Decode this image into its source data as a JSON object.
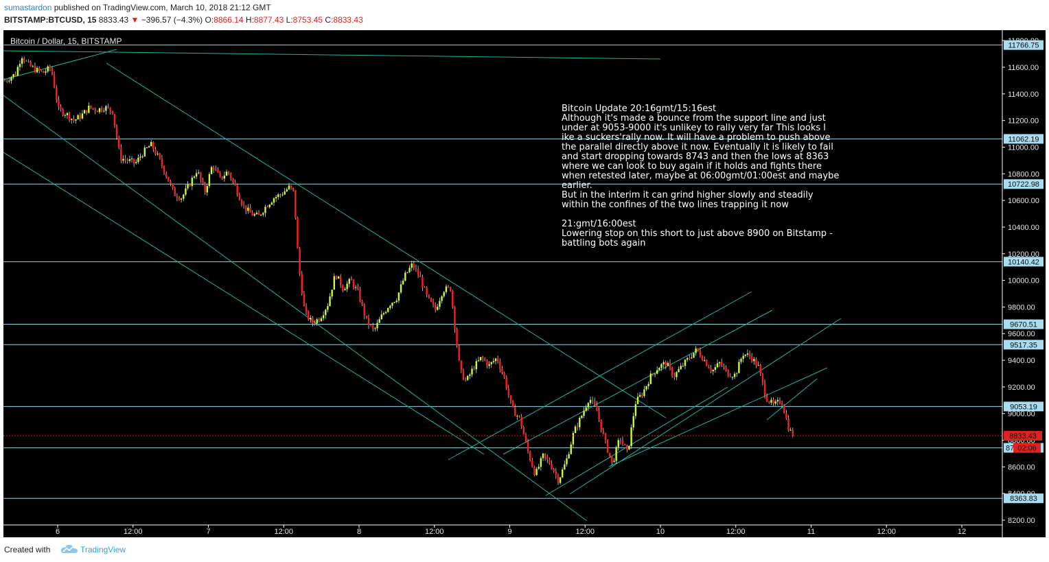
{
  "header": {
    "username": "sumastardon",
    "published_text": "published on TradingView.com, March 10, 2018 21:12 GMT",
    "symbol": "BITSTAMP:BTCUSD, 15",
    "last": "8833.43",
    "change": "−396.57 (−4.3%)",
    "open_label": "O:",
    "open": "8866.14",
    "high_label": "H:",
    "high": "8877.43",
    "low_label": "L:",
    "low": "8753.45",
    "close_label": "C:",
    "close": "8833.43"
  },
  "chart": {
    "title": "Bitcoin / Dollar, 15, BITSTAMP",
    "annotation_lines": [
      "Bitcoin Update 20:16gmt/15:16est",
      "Although it's made a bounce from the support line and just",
      "under at 9053-9000 it's unlikey to rally very far  This looks l",
      "ike a suckers'rally now. It will have a problem to push above",
      "the parallel directly above it now. Eventually it is likely to fail",
      "and start dropping towards 8743 and then the lows at 8363",
      "where we can look to buy again if it holds and fights there",
      "when retested later, maybe at 06:00gmt/01:00est and maybe",
      "earlier.",
      "But in the interim it can grind higher slowly and steadily",
      "within the confines of the two lines trapping it now",
      "",
      "21:gmt/16:00est",
      "Lowering stop on this short to just above 8900 on Bitstamp -",
      "battling bots again"
    ],
    "countdown": "02:06",
    "price_tag_partial": "87",
    "colors": {
      "background": "#000000",
      "up": "#c8ff2e",
      "down": "#ff1d1d",
      "lines": "#1fb5a2",
      "hline": "#8fd6e6",
      "last_price": "#e0221f"
    }
  },
  "footer": {
    "created_with": "Created with",
    "brand": "TradingView",
    "logo_icon": "tradingview-cloud-icon"
  },
  "chart_data": {
    "type": "candlestick",
    "title": "Bitcoin / Dollar, 15, BITSTAMP",
    "y_ticks": [
      8200,
      8400,
      8600,
      8800,
      9000,
      9200,
      9400,
      9600,
      9800,
      10000,
      10200,
      10400,
      10600,
      10800,
      11000,
      11200,
      11400,
      11600,
      11800
    ],
    "y_tick_labels": [
      "8200.00",
      "8400.00",
      "8600.00",
      "8800.00",
      "9000.00",
      "9200.00",
      "9400.00",
      "9600.00",
      "9800.00",
      "10000.00",
      "10200.00",
      "10400.00",
      "10600.00",
      "10800.00",
      "11000.00",
      "11200.00",
      "11400.00",
      "11600.00",
      "11800.00"
    ],
    "ylim": [
      8150,
      11850
    ],
    "x_tick_labels": [
      "6",
      "12:00",
      "7",
      "12:00",
      "8",
      "12:00",
      "9",
      "12:00",
      "10",
      "12:00",
      "11",
      "12:00",
      "12"
    ],
    "horizontal_levels": [
      11766.75,
      11062.19,
      10722.98,
      10140.42,
      9670.51,
      9517.35,
      9053.19,
      8743.0,
      8363.83
    ],
    "horizontal_level_labels": [
      "11766.75",
      "11062.19",
      "10722.98",
      "10140.42",
      "9670.51",
      "9517.35",
      "9053.19",
      "",
      "8363.83"
    ],
    "last_price": 8833.43,
    "last_price_label": "8833.43",
    "price_path": [
      [
        0.0,
        11500
      ],
      [
        0.7,
        11550
      ],
      [
        1.1,
        11690
      ],
      [
        1.5,
        11620
      ],
      [
        2.0,
        11580
      ],
      [
        2.5,
        11560
      ],
      [
        3.0,
        11600
      ],
      [
        3.5,
        11280
      ],
      [
        4.0,
        11250
      ],
      [
        4.5,
        11200
      ],
      [
        5.0,
        11240
      ],
      [
        5.5,
        11300
      ],
      [
        6.0,
        11280
      ],
      [
        6.5,
        11300
      ],
      [
        7.0,
        11270
      ],
      [
        7.5,
        10920
      ],
      [
        8.0,
        10900
      ],
      [
        8.5,
        10880
      ],
      [
        9.0,
        10960
      ],
      [
        9.5,
        11020
      ],
      [
        10.0,
        10920
      ],
      [
        10.5,
        10790
      ],
      [
        11.0,
        10650
      ],
      [
        11.5,
        10620
      ],
      [
        12.0,
        10720
      ],
      [
        12.5,
        10830
      ],
      [
        13.0,
        10660
      ],
      [
        13.5,
        10870
      ],
      [
        14.0,
        10760
      ],
      [
        14.5,
        10820
      ],
      [
        15.0,
        10700
      ],
      [
        15.5,
        10560
      ],
      [
        16.0,
        10500
      ],
      [
        16.5,
        10480
      ],
      [
        17.0,
        10560
      ],
      [
        17.5,
        10620
      ],
      [
        18.0,
        10650
      ],
      [
        18.5,
        10700
      ],
      [
        18.8,
        10660
      ],
      [
        19.1,
        10120
      ],
      [
        19.5,
        9760
      ],
      [
        20.0,
        9680
      ],
      [
        20.5,
        9720
      ],
      [
        21.0,
        9820
      ],
      [
        21.5,
        10050
      ],
      [
        22.0,
        9940
      ],
      [
        22.5,
        10000
      ],
      [
        23.0,
        9900
      ],
      [
        23.5,
        9700
      ],
      [
        24.0,
        9620
      ],
      [
        24.5,
        9730
      ],
      [
        25.0,
        9820
      ],
      [
        25.5,
        9870
      ],
      [
        26.0,
        10030
      ],
      [
        26.5,
        10120
      ],
      [
        27.0,
        10020
      ],
      [
        27.5,
        9860
      ],
      [
        28.0,
        9780
      ],
      [
        28.5,
        9930
      ],
      [
        29.0,
        9940
      ],
      [
        29.2,
        9720
      ],
      [
        29.6,
        9320
      ],
      [
        30.0,
        9240
      ],
      [
        30.5,
        9350
      ],
      [
        31.0,
        9420
      ],
      [
        31.5,
        9360
      ],
      [
        32.0,
        9420
      ],
      [
        32.5,
        9260
      ],
      [
        33.0,
        9030
      ],
      [
        33.5,
        8960
      ],
      [
        34.0,
        8720
      ],
      [
        34.5,
        8540
      ],
      [
        35.0,
        8680
      ],
      [
        35.5,
        8620
      ],
      [
        36.0,
        8500
      ],
      [
        36.5,
        8640
      ],
      [
        37.0,
        8860
      ],
      [
        37.5,
        8980
      ],
      [
        38.0,
        9120
      ],
      [
        38.5,
        9020
      ],
      [
        39.0,
        8800
      ],
      [
        39.5,
        8620
      ],
      [
        40.0,
        8820
      ],
      [
        40.5,
        8700
      ],
      [
        41.0,
        9080
      ],
      [
        41.5,
        9160
      ],
      [
        42.0,
        9280
      ],
      [
        42.5,
        9350
      ],
      [
        43.0,
        9380
      ],
      [
        43.5,
        9280
      ],
      [
        44.0,
        9350
      ],
      [
        44.5,
        9420
      ],
      [
        45.0,
        9480
      ],
      [
        45.5,
        9400
      ],
      [
        46.0,
        9320
      ],
      [
        46.5,
        9380
      ],
      [
        47.0,
        9300
      ],
      [
        47.5,
        9290
      ],
      [
        48.0,
        9450
      ],
      [
        48.5,
        9430
      ],
      [
        49.0,
        9350
      ],
      [
        49.5,
        9120
      ],
      [
        50.0,
        9060
      ],
      [
        50.5,
        9100
      ],
      [
        51.0,
        8880
      ],
      [
        51.3,
        8833
      ]
    ]
  }
}
